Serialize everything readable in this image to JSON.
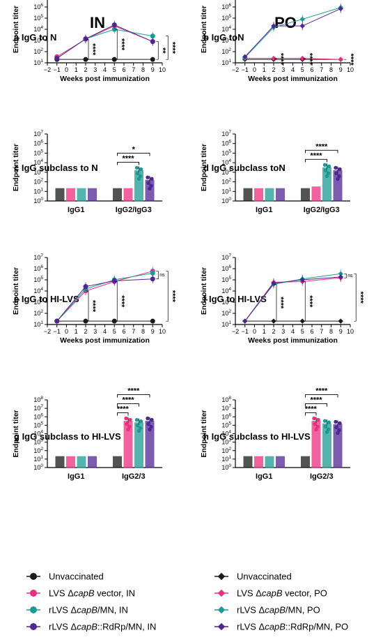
{
  "headers": {
    "left": "IN",
    "right": "PO"
  },
  "colors": {
    "Unvaccinated": "#1a1a1a",
    "LVS": "#ef2d7f",
    "MN": "#1b9b93",
    "RdRp": "#4f2693"
  },
  "legend": {
    "left": [
      {
        "label": "Unvaccinated",
        "color": "#1a1a1a",
        "marker": "circle"
      },
      {
        "label_pre": "LVS Δ",
        "label_it": "capB",
        "label_post": " vector, IN",
        "color": "#ef2d7f",
        "marker": "circle"
      },
      {
        "label_pre": "rLVS Δ",
        "label_it": "capB",
        "label_post": "/MN, IN",
        "color": "#1b9b93",
        "marker": "circle"
      },
      {
        "label_pre": "rLVS Δ",
        "label_it": "capB",
        "label_post": "::RdRp/MN, IN",
        "color": "#4f2693",
        "marker": "circle"
      }
    ],
    "right": [
      {
        "label": "Unvaccinated",
        "color": "#1a1a1a",
        "marker": "diamond"
      },
      {
        "label_pre": "LVS Δ",
        "label_it": "capB",
        "label_post": " vector, PO",
        "color": "#ef2d7f",
        "marker": "diamond"
      },
      {
        "label_pre": "rLVS Δ",
        "label_it": "capB",
        "label_post": "/MN, PO",
        "color": "#1b9b93",
        "marker": "diamond"
      },
      {
        "label_pre": "rLVS Δ",
        "label_it": "capB",
        "label_post": "::RdRp/MN, PO",
        "color": "#4f2693",
        "marker": "diamond"
      }
    ]
  },
  "chart_data": [
    {
      "panel": "a",
      "title": "IgG to N",
      "type": "line",
      "marker": "circle",
      "xlabel": "Weeks post immunization",
      "ylabel": "Endpoint titer",
      "xlim": [
        -2,
        10
      ],
      "xticks": [
        -2,
        -1,
        0,
        1,
        2,
        3,
        4,
        5,
        6,
        7,
        8,
        9,
        10
      ],
      "ylim_log10": [
        1,
        7
      ],
      "series": [
        {
          "name": "Unvaccinated",
          "x": [
            -1,
            2,
            5,
            9
          ],
          "y": [
            20,
            20,
            20,
            20
          ]
        },
        {
          "name": "LVS",
          "x": [
            -1,
            2,
            5,
            9
          ],
          "y": [
            35,
            1300,
            20000,
            800
          ]
        },
        {
          "name": "MN",
          "x": [
            -1,
            2,
            5,
            9
          ],
          "y": [
            25,
            1400,
            10000,
            2500
          ]
        },
        {
          "name": "RdRp",
          "x": [
            -1,
            2,
            5,
            9
          ],
          "y": [
            25,
            1400,
            25000,
            800
          ]
        }
      ],
      "annotations": [
        {
          "x": 2,
          "text": "****"
        },
        {
          "x": 5,
          "text": "****"
        },
        {
          "x": 9,
          "text": "**"
        },
        {
          "x": 9,
          "text": "****"
        }
      ]
    },
    {
      "panel": "b",
      "title": "IgG toN",
      "type": "line",
      "marker": "diamond",
      "xlabel": "Weeks post immunization",
      "ylabel": "Endpoint titer",
      "xlim": [
        -2,
        10
      ],
      "xticks": [
        -2,
        -1,
        0,
        1,
        2,
        3,
        4,
        5,
        6,
        7,
        8,
        9,
        10
      ],
      "ylim_log10": [
        1,
        7
      ],
      "series": [
        {
          "name": "Unvaccinated",
          "x": [
            -1,
            2,
            5,
            9
          ],
          "y": [
            20,
            20,
            20,
            20
          ]
        },
        {
          "name": "LVS",
          "x": [
            -1,
            2,
            5,
            9
          ],
          "y": [
            25,
            25,
            25,
            20
          ]
        },
        {
          "name": "MN",
          "x": [
            -1,
            2,
            5,
            9
          ],
          "y": [
            30,
            15000,
            80000,
            900000
          ]
        },
        {
          "name": "RdRp",
          "x": [
            -1,
            2,
            5,
            9
          ],
          "y": [
            35,
            20000,
            20000,
            700000
          ]
        }
      ],
      "annotations": [
        {
          "x": 2,
          "text": "****"
        },
        {
          "x": 5,
          "text": "****"
        },
        {
          "x": 9,
          "text": "****"
        }
      ]
    },
    {
      "panel": "c",
      "title": "IgG subclass to N",
      "type": "bar",
      "ylabel": "Endpoint titer",
      "ylim_log10": [
        0,
        7
      ],
      "categories": [
        "IgG1",
        "IgG2/IgG3"
      ],
      "series": [
        {
          "name": "Unvaccinated",
          "values": [
            20,
            20
          ]
        },
        {
          "name": "LVS",
          "values": [
            20,
            20
          ]
        },
        {
          "name": "MN",
          "values": [
            20,
            1500
          ]
        },
        {
          "name": "RdRp",
          "values": [
            20,
            150
          ]
        }
      ],
      "brackets": [
        {
          "from": "Unvaccinated",
          "to": "MN",
          "text": "****"
        },
        {
          "from": "Unvaccinated",
          "to": "RdRp",
          "text": "*"
        }
      ]
    },
    {
      "panel": "d",
      "title": "IgG subclass toN",
      "type": "bar",
      "ylabel": "Endpoint titer",
      "ylim_log10": [
        0,
        7
      ],
      "categories": [
        "IgG1",
        "IgG2/IgG3"
      ],
      "series": [
        {
          "name": "Unvaccinated",
          "values": [
            20,
            20
          ]
        },
        {
          "name": "LVS",
          "values": [
            20,
            30
          ]
        },
        {
          "name": "MN",
          "values": [
            20,
            3000
          ]
        },
        {
          "name": "RdRp",
          "values": [
            20,
            1500
          ]
        }
      ],
      "brackets": [
        {
          "from": "Unvaccinated",
          "to": "MN",
          "text": "****"
        },
        {
          "from": "Unvaccinated",
          "to": "RdRp",
          "text": "****"
        }
      ]
    },
    {
      "panel": "e",
      "title": "IgG to HI-LVS",
      "type": "line",
      "marker": "circle",
      "xlabel": "Weeks post immunization",
      "ylabel": "Endpoint titer",
      "xlim": [
        -2,
        10
      ],
      "xticks": [
        -2,
        -1,
        0,
        1,
        2,
        3,
        4,
        5,
        6,
        7,
        8,
        9,
        10
      ],
      "ylim_log10": [
        1,
        7
      ],
      "series": [
        {
          "name": "Unvaccinated",
          "x": [
            -1,
            2,
            5,
            9
          ],
          "y": [
            20,
            20,
            20,
            20
          ]
        },
        {
          "name": "LVS",
          "x": [
            -1,
            2,
            5,
            9
          ],
          "y": [
            20,
            10000,
            70000,
            600000
          ]
        },
        {
          "name": "MN",
          "x": [
            -1,
            2,
            5,
            9
          ],
          "y": [
            20,
            15000,
            100000,
            400000
          ]
        },
        {
          "name": "RdRp",
          "x": [
            -1,
            2,
            5,
            9
          ],
          "y": [
            20,
            25000,
            80000,
            120000
          ]
        }
      ],
      "annotations": [
        {
          "x": 2,
          "text": "****"
        },
        {
          "x": 5,
          "text": "****"
        },
        {
          "x": 9,
          "text": "ns"
        },
        {
          "x": 9,
          "text": "****"
        }
      ]
    },
    {
      "panel": "f",
      "title": "IgG to HI-LVS",
      "type": "line",
      "marker": "diamond",
      "xlabel": "Weeks post immunization",
      "ylabel": "Endpoint titer",
      "xlim": [
        -2,
        10
      ],
      "xticks": [
        -2,
        -1,
        0,
        1,
        2,
        3,
        4,
        5,
        6,
        7,
        8,
        9,
        10
      ],
      "ylim_log10": [
        1,
        7
      ],
      "series": [
        {
          "name": "Unvaccinated",
          "x": [
            -1,
            2,
            5,
            9
          ],
          "y": [
            20,
            20,
            20,
            20
          ]
        },
        {
          "name": "LVS",
          "x": [
            -1,
            2,
            5,
            9
          ],
          "y": [
            20,
            60000,
            70000,
            150000
          ]
        },
        {
          "name": "MN",
          "x": [
            -1,
            2,
            5,
            9
          ],
          "y": [
            20,
            40000,
            120000,
            350000
          ]
        },
        {
          "name": "RdRp",
          "x": [
            -1,
            2,
            5,
            9
          ],
          "y": [
            20,
            50000,
            100000,
            180000
          ]
        }
      ],
      "annotations": [
        {
          "x": 2,
          "text": "****"
        },
        {
          "x": 5,
          "text": "****"
        },
        {
          "x": 9,
          "text": "ns"
        },
        {
          "x": 9,
          "text": "****"
        }
      ]
    },
    {
      "panel": "g",
      "title": "IgG subclass to HI-LVS",
      "type": "bar",
      "ylabel": "Endpoint titer",
      "ylim_log10": [
        0,
        8
      ],
      "categories": [
        "IgG1",
        "IgG2/3"
      ],
      "series": [
        {
          "name": "Unvaccinated",
          "values": [
            20,
            20
          ]
        },
        {
          "name": "LVS",
          "values": [
            20,
            300000
          ]
        },
        {
          "name": "MN",
          "values": [
            20,
            200000
          ]
        },
        {
          "name": "RdRp",
          "values": [
            20,
            300000
          ]
        }
      ],
      "brackets": [
        {
          "from": "Unvaccinated",
          "to": "LVS",
          "text": "****"
        },
        {
          "from": "Unvaccinated",
          "to": "MN",
          "text": "****"
        },
        {
          "from": "Unvaccinated",
          "to": "RdRp",
          "text": "****"
        }
      ]
    },
    {
      "panel": "h",
      "title": "IgG subclass to HI-LVS",
      "type": "bar",
      "ylabel": "Endpoint titer",
      "ylim_log10": [
        0,
        8
      ],
      "categories": [
        "IgG1",
        "IgG2/3"
      ],
      "series": [
        {
          "name": "Unvaccinated",
          "values": [
            20,
            20
          ]
        },
        {
          "name": "LVS",
          "values": [
            20,
            300000
          ]
        },
        {
          "name": "MN",
          "values": [
            20,
            150000
          ]
        },
        {
          "name": "RdRp",
          "values": [
            20,
            120000
          ]
        }
      ],
      "brackets": [
        {
          "from": "Unvaccinated",
          "to": "LVS",
          "text": "****"
        },
        {
          "from": "Unvaccinated",
          "to": "MN",
          "text": "****"
        },
        {
          "from": "Unvaccinated",
          "to": "RdRp",
          "text": "****"
        }
      ]
    }
  ]
}
